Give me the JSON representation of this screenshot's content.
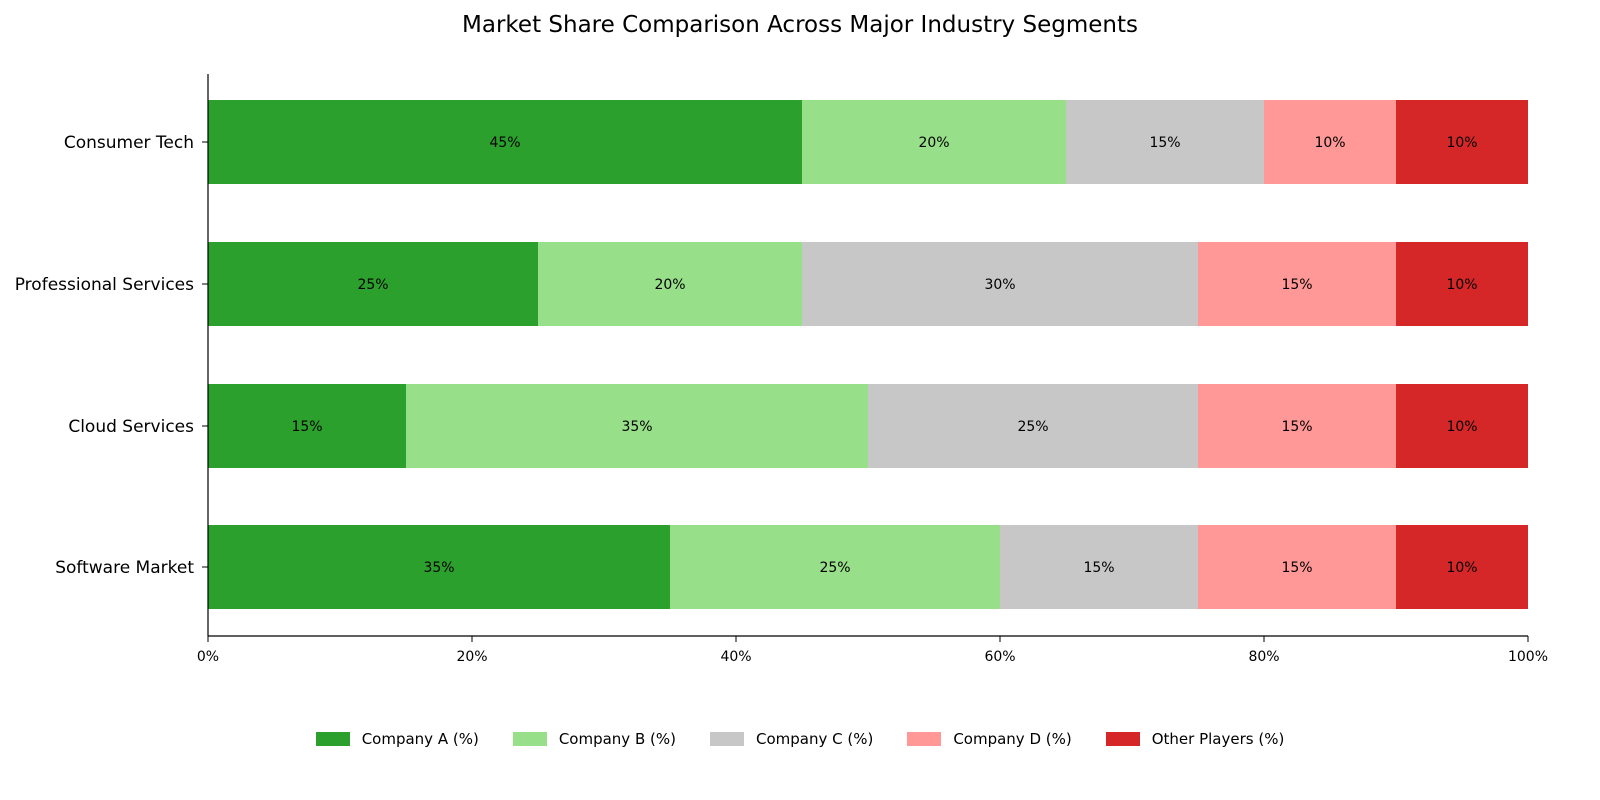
{
  "chart_data": {
    "type": "bar",
    "orientation": "horizontal",
    "stacked": true,
    "title": "Market Share Comparison Across Major Industry Segments",
    "xlabel": "",
    "ylabel": "",
    "xlim": [
      0,
      100
    ],
    "x_ticks": [
      "0%",
      "20%",
      "40%",
      "60%",
      "80%",
      "100%"
    ],
    "categories": [
      "Consumer Tech",
      "Professional Services",
      "Cloud Services",
      "Software Market"
    ],
    "series": [
      {
        "name": "Company A (%)",
        "color": "#2ca02c",
        "values": [
          45,
          25,
          15,
          35
        ]
      },
      {
        "name": "Company B (%)",
        "color": "#98df8a",
        "values": [
          20,
          20,
          35,
          25
        ]
      },
      {
        "name": "Company C (%)",
        "color": "#c7c7c7",
        "values": [
          15,
          30,
          25,
          15
        ]
      },
      {
        "name": "Company D (%)",
        "color": "#ff9896",
        "values": [
          10,
          15,
          15,
          15
        ]
      },
      {
        "name": "Other Players (%)",
        "color": "#d62728",
        "values": [
          10,
          10,
          10,
          10
        ]
      }
    ],
    "data_labels": true,
    "grid": false,
    "legend_position": "bottom-center"
  }
}
